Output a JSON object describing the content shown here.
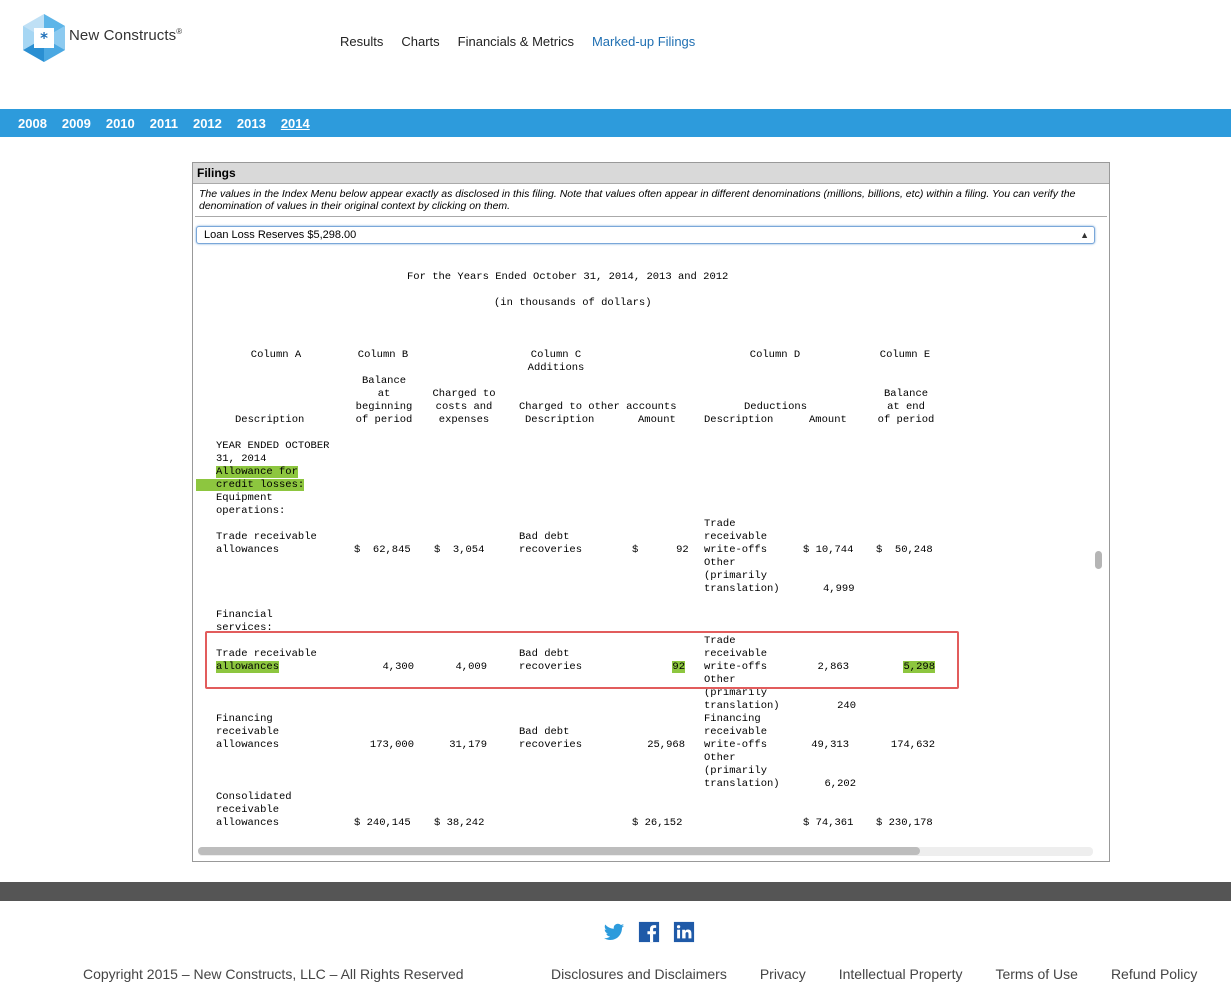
{
  "brand": {
    "name": "New Constructs",
    "registered": "®"
  },
  "topnav": [
    {
      "label": "Results"
    },
    {
      "label": "Charts"
    },
    {
      "label": "Financials & Metrics"
    },
    {
      "label": "Marked-up Filings"
    }
  ],
  "years": [
    "2008",
    "2009",
    "2010",
    "2011",
    "2012",
    "2013",
    "2014"
  ],
  "current_year": "2014",
  "panel": {
    "title": "Filings",
    "note": "The values in the Index Menu below appear exactly as disclosed in this filing. Note that values often appear in different denominations (millions, billions, etc) within a filing. You can verify the denomination of values in their original context by clicking on them.",
    "select_value": "Loan Loss Reserves $5,298.00"
  },
  "doc": {
    "period_line": "For the Years Ended October 31, 2014, 2013 and 2012",
    "units_line": "(in thousands of dollars)",
    "columns": {
      "a": "Column A",
      "b": "Column B",
      "c": "Column C\nAdditions",
      "d": "Column D",
      "e": "Column E"
    },
    "subheads": {
      "description": "Description",
      "balance_begin": "Balance\nat\nbeginning\nof period",
      "charged_costs": "Charged to\ncosts and\nexpenses",
      "charged_other": "Charged to other accounts",
      "c_description": "Description",
      "c_amount": "Amount",
      "deductions": "Deductions",
      "d_description": "Description",
      "d_amount": "Amount",
      "balance_end": "Balance\nat end\nof period"
    },
    "section_year": "YEAR ENDED OCTOBER\n31, 2014",
    "allowance_label_1": "Allowance for",
    "allowance_label_2": "credit losses:",
    "equipment_ops": "Equipment\noperations:",
    "row1": {
      "label": "Trade receivable\nallowances",
      "begin": "$  62,845",
      "costs": "$  3,054",
      "other_desc": "Bad debt\nrecoveries",
      "other_amt": "$      92",
      "ded_desc": "Trade\nreceivable\nwrite-offs\nOther\n(primarily\ntranslation)",
      "ded_amt_1": "$ 10,744",
      "ded_amt_2": "4,999",
      "end": "$  50,248"
    },
    "financial_services": "Financial\nservices:",
    "row2": {
      "label_1": "Trade receivable",
      "label_2": "allowances",
      "begin": "4,300",
      "costs": "4,009",
      "other_desc": "Bad debt\nrecoveries",
      "other_amt": "92",
      "ded_desc": "Trade\nreceivable\nwrite-offs\nOther\n(primarily\ntranslation)",
      "ded_amt_1": "2,863",
      "ded_amt_2": "240",
      "end": "5,298"
    },
    "row3": {
      "label": "Financing\nreceivable\nallowances",
      "begin": "173,000",
      "costs": "31,179",
      "other_desc": "Bad debt\nrecoveries",
      "other_amt": "25,968",
      "ded_desc": "Financing\nreceivable\nwrite-offs\nOther\n(primarily\ntranslation)",
      "ded_amt_1": "49,313",
      "ded_amt_2": "6,202",
      "end": "174,632"
    },
    "row4": {
      "label": "Consolidated\nreceivable\nallowances",
      "begin": "$ 240,145",
      "costs": "$ 38,242",
      "other_amt": "$ 26,152",
      "ded_amt": "$ 74,361",
      "end": "$ 230,178"
    }
  },
  "social_icons": [
    "twitter-icon",
    "facebook-icon",
    "linkedin-icon"
  ],
  "colors": {
    "year_bar": "#2d9bdc",
    "highlight": "#8dc63f",
    "red_box": "#e25c5c",
    "footer_bar": "#555555",
    "active_nav": "#1f6fb2"
  },
  "footer": {
    "copyright": "Copyright 2015 – New Constructs, LLC – All Rights Reserved",
    "links": [
      {
        "label": "Disclosures and Disclaimers"
      },
      {
        "label": "Privacy"
      },
      {
        "label": "Intellectual Property"
      },
      {
        "label": "Terms of Use"
      },
      {
        "label": "Refund Policy"
      }
    ]
  }
}
